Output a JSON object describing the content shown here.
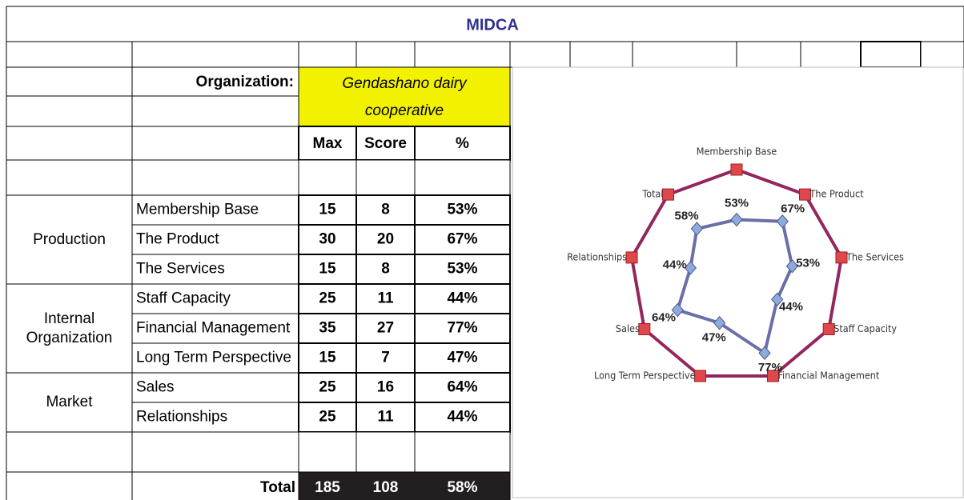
{
  "title": "MIDCA",
  "table": {
    "organization_label": "Organization:",
    "organization": "Gendashano dairy cooperative",
    "columns": [
      "Max",
      "Score",
      "%"
    ],
    "groups": [
      {
        "name": "Production",
        "rows": [
          {
            "label": "Membership Base",
            "max": 15,
            "score": 8,
            "pct": "53%"
          },
          {
            "label": "The Product",
            "max": 30,
            "score": 20,
            "pct": "67%"
          },
          {
            "label": "The Services",
            "max": 15,
            "score": 8,
            "pct": "53%"
          }
        ]
      },
      {
        "name": "Internal Organization",
        "rows": [
          {
            "label": "Staff Capacity",
            "max": 25,
            "score": 11,
            "pct": "44%"
          },
          {
            "label": "Financial Management",
            "max": 35,
            "score": 27,
            "pct": "77%"
          },
          {
            "label": "Long Term Perspective",
            "max": 15,
            "score": 7,
            "pct": "47%"
          }
        ]
      },
      {
        "name": "Market",
        "rows": [
          {
            "label": "Sales",
            "max": 25,
            "score": 16,
            "pct": "64%"
          },
          {
            "label": "Relationships",
            "max": 25,
            "score": 11,
            "pct": "44%"
          }
        ]
      }
    ],
    "total": {
      "label": "Total",
      "max": 185,
      "score": 108,
      "pct": "58%"
    }
  },
  "chart_data": {
    "type": "radar",
    "categories": [
      "Membership Base",
      "The Product",
      "The Services",
      "Staff Capacity",
      "Financial Management",
      "Long Term Perspective",
      "Sales",
      "Relationships",
      "Total"
    ],
    "series": [
      {
        "color": "#93265f",
        "marker_color": "#e0474c",
        "values": [
          100,
          100,
          100,
          100,
          100,
          100,
          100,
          100,
          100
        ]
      },
      {
        "color": "#6b6ea8",
        "marker_color": "#8eaadc",
        "values": [
          53,
          67,
          53,
          44,
          77,
          47,
          64,
          44,
          58
        ],
        "value_labels": [
          "53%",
          "67%",
          "53%",
          "44%",
          "77%",
          "47%",
          "64%",
          "44%",
          "58%"
        ]
      }
    ],
    "ylim": [
      0,
      100
    ]
  }
}
